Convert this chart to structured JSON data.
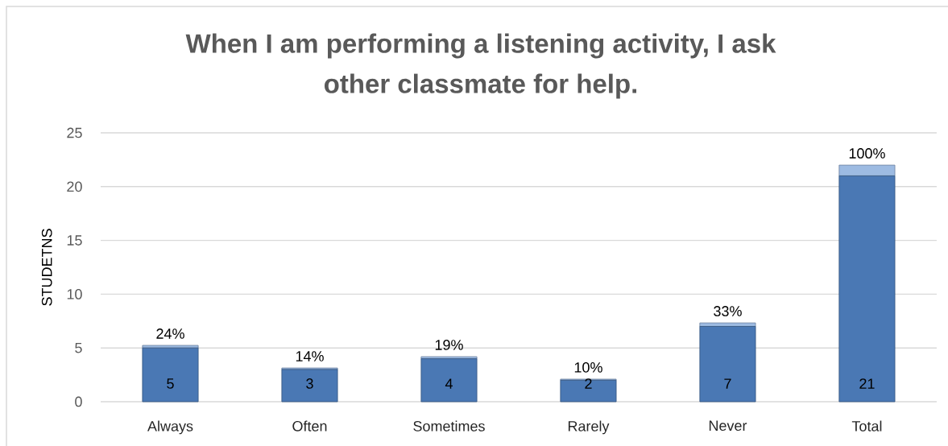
{
  "chart_data": {
    "type": "bar",
    "title": "When I am performing a listening activity, I ask other classmate for help.",
    "ylabel": "STUDETNS",
    "categories": [
      "Always",
      "Often",
      "Sometimes",
      "Rarely",
      "Never",
      "Total"
    ],
    "stacked": true,
    "series": [
      {
        "color": "#4a78b4",
        "values": [
          5,
          3,
          4,
          2,
          7,
          21
        ],
        "value_labels": [
          "5",
          "3",
          "4",
          "2",
          "7",
          "21"
        ]
      },
      {
        "color": "#9dbbe2",
        "values": [
          0.24,
          0.14,
          0.19,
          0.1,
          0.33,
          1.0
        ],
        "value_labels": [
          "24%",
          "14%",
          "19%",
          "10%",
          "33%",
          "100%"
        ]
      }
    ],
    "ylim": [
      0,
      25
    ],
    "yticks": [
      0,
      5,
      10,
      15,
      20,
      25
    ],
    "grid": "y"
  }
}
